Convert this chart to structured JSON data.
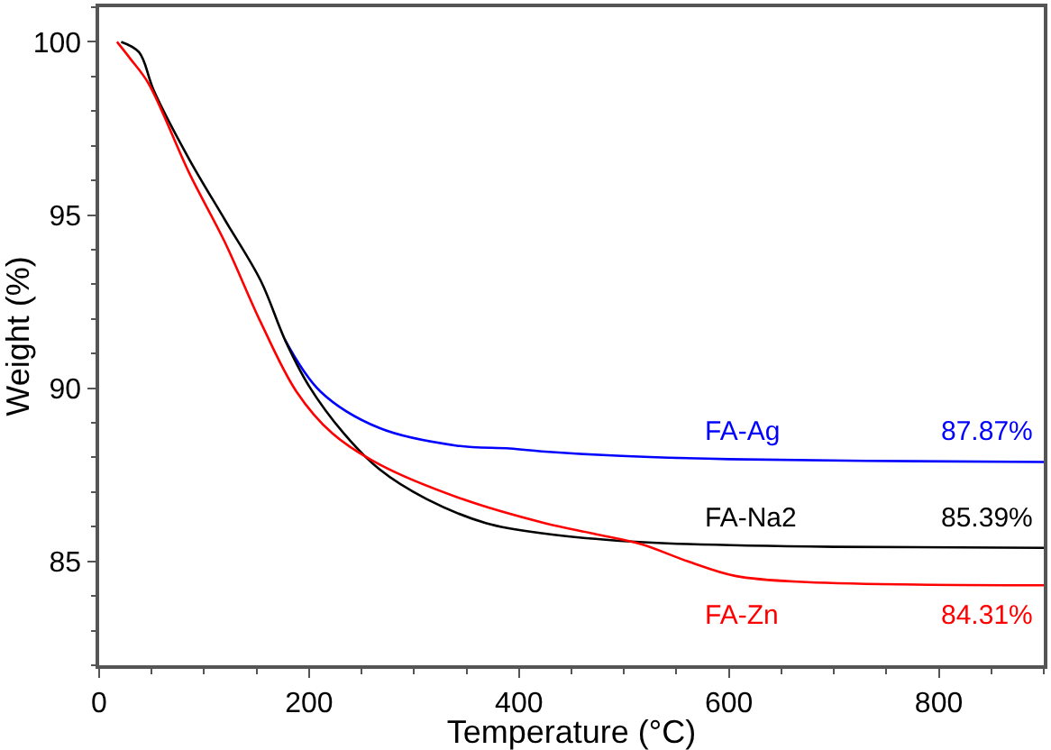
{
  "chart_data": {
    "type": "line",
    "xlabel": "Temperature (°C)",
    "ylabel": "Weight (%)",
    "xlim": [
      0,
      900
    ],
    "xticks": [
      0,
      200,
      400,
      600,
      800
    ],
    "ylim": [
      82,
      101
    ],
    "yticks": [
      85,
      90,
      95,
      100
    ],
    "legend": false,
    "marker": "none",
    "line_style": "solid",
    "series": [
      {
        "name": "FA-Ag",
        "color": "#0000ff",
        "x": [
          177,
          211,
          267,
          341,
          391,
          425,
          493,
          600,
          730,
          900
        ],
        "values": [
          91.4,
          89.9,
          88.85,
          88.34,
          88.26,
          88.17,
          88.05,
          87.95,
          87.9,
          87.87
        ]
      },
      {
        "name": "FA-Na2",
        "color": "#000000",
        "x": [
          21,
          38,
          52,
          86,
          120,
          154,
          177,
          200,
          233,
          267,
          312,
          369,
          425,
          493,
          561,
          700,
          900
        ],
        "values": [
          100,
          99.7,
          98.6,
          96.6,
          94.85,
          93.1,
          91.4,
          90.06,
          88.7,
          87.66,
          86.8,
          86.1,
          85.8,
          85.6,
          85.5,
          85.42,
          85.39
        ]
      },
      {
        "name": "FA-Zn",
        "color": "#ff0000",
        "x": [
          17,
          30,
          47,
          86,
          120,
          154,
          188,
          222,
          267,
          346,
          425,
          471,
          516,
          561,
          606,
          674,
          900
        ],
        "values": [
          100,
          99.5,
          98.8,
          96.2,
          94.2,
          91.9,
          89.9,
          88.7,
          87.8,
          86.8,
          86.1,
          85.8,
          85.5,
          85.0,
          84.58,
          84.4,
          84.31
        ]
      }
    ],
    "annotations": [
      "87.87%",
      "85.39%",
      "84.31%"
    ]
  }
}
